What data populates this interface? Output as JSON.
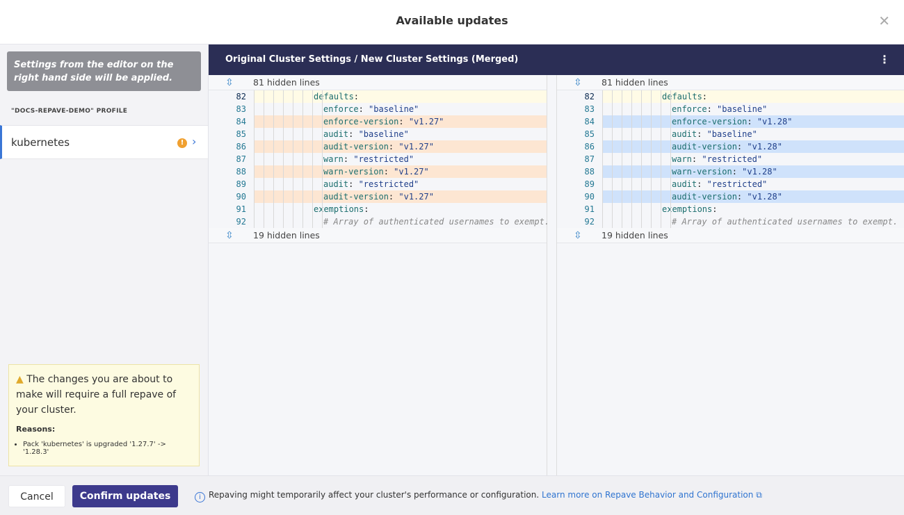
{
  "dialog": {
    "title": "Available updates",
    "close_icon": "close-icon"
  },
  "sidebar": {
    "note": "Settings from the editor on the right hand side will be applied.",
    "profile_label": "\"DOCS-REPAVE-DEMO\" PROFILE",
    "items": [
      {
        "label": "kubernetes",
        "badge": "!"
      }
    ]
  },
  "warning": {
    "message": "The changes you are about to make will require a full repave of your cluster.",
    "reasons_label": "Reasons:",
    "reasons": [
      "Pack 'kubernetes' is upgraded '1.27.7' -> '1.28.3'"
    ]
  },
  "footer": {
    "cancel": "Cancel",
    "confirm": "Confirm updates",
    "info": "Repaving might temporarily affect your cluster's performance or configuration.",
    "link": "Learn more on Repave Behavior and Configuration"
  },
  "editor": {
    "title": "Original Cluster Settings / New Cluster Settings (Merged)",
    "hidden_top": "81 hidden lines",
    "hidden_bottom": "19 hidden lines",
    "left": [
      {
        "n": "82",
        "key": "defaults",
        "val": "",
        "ind": false,
        "chg": false
      },
      {
        "n": "83",
        "key": "enforce",
        "val": "\"baseline\"",
        "ind": true,
        "chg": false
      },
      {
        "n": "84",
        "key": "enforce-version",
        "val": "\"v1.27\"",
        "ind": true,
        "chg": true
      },
      {
        "n": "85",
        "key": "audit",
        "val": "\"baseline\"",
        "ind": true,
        "chg": false
      },
      {
        "n": "86",
        "key": "audit-version",
        "val": "\"v1.27\"",
        "ind": true,
        "chg": true
      },
      {
        "n": "87",
        "key": "warn",
        "val": "\"restricted\"",
        "ind": true,
        "chg": false
      },
      {
        "n": "88",
        "key": "warn-version",
        "val": "\"v1.27\"",
        "ind": true,
        "chg": true
      },
      {
        "n": "89",
        "key": "audit",
        "val": "\"restricted\"",
        "ind": true,
        "chg": false
      },
      {
        "n": "90",
        "key": "audit-version",
        "val": "\"v1.27\"",
        "ind": true,
        "chg": true
      },
      {
        "n": "91",
        "key": "exemptions",
        "val": "",
        "ind": false,
        "chg": false
      },
      {
        "n": "92",
        "comment": "# Array of authenticated usernames to exempt.",
        "ind": true,
        "chg": false
      }
    ],
    "right": [
      {
        "n": "82",
        "key": "defaults",
        "val": "",
        "ind": false,
        "chg": false
      },
      {
        "n": "83",
        "key": "enforce",
        "val": "\"baseline\"",
        "ind": true,
        "chg": false
      },
      {
        "n": "84",
        "key": "enforce-version",
        "val": "\"v1.28\"",
        "ind": true,
        "chg": true
      },
      {
        "n": "85",
        "key": "audit",
        "val": "\"baseline\"",
        "ind": true,
        "chg": false
      },
      {
        "n": "86",
        "key": "audit-version",
        "val": "\"v1.28\"",
        "ind": true,
        "chg": true
      },
      {
        "n": "87",
        "key": "warn",
        "val": "\"restricted\"",
        "ind": true,
        "chg": false
      },
      {
        "n": "88",
        "key": "warn-version",
        "val": "\"v1.28\"",
        "ind": true,
        "chg": true
      },
      {
        "n": "89",
        "key": "audit",
        "val": "\"restricted\"",
        "ind": true,
        "chg": false
      },
      {
        "n": "90",
        "key": "audit-version",
        "val": "\"v1.28\"",
        "ind": true,
        "chg": true
      },
      {
        "n": "91",
        "key": "exemptions",
        "val": "",
        "ind": false,
        "chg": false
      },
      {
        "n": "92",
        "comment": "# Array of authenticated usernames to exempt.",
        "ind": true,
        "chg": false
      }
    ]
  }
}
